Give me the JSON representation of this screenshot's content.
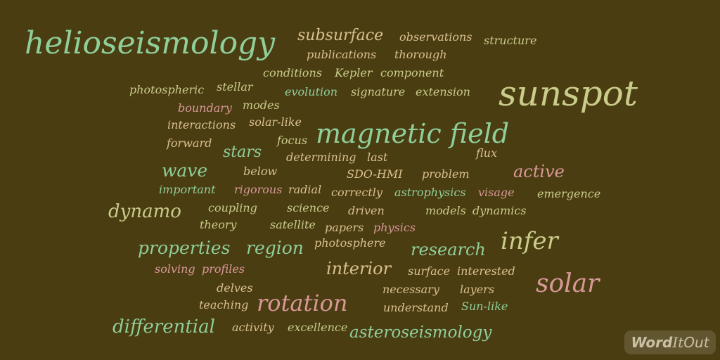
{
  "cloud": {
    "words": [
      "helioseismology",
      "subsurface",
      "observations",
      "structure",
      "publications",
      "thorough",
      "conditions",
      "Kepler",
      "component",
      "photospheric",
      "stellar",
      "evolution",
      "signature",
      "extension",
      "sunspot",
      "boundary",
      "modes",
      "interactions",
      "solar-like",
      "magnetic field",
      "forward",
      "focus",
      "stars",
      "determining",
      "last",
      "flux",
      "wave",
      "below",
      "SDO-HMI",
      "problem",
      "active",
      "important",
      "rigorous",
      "radial",
      "correctly",
      "astrophysics",
      "visage",
      "emergence",
      "dynamo",
      "coupling",
      "science",
      "driven",
      "models",
      "dynamics",
      "theory",
      "satellite",
      "papers",
      "physics",
      "properties",
      "region",
      "photosphere",
      "research",
      "infer",
      "solving",
      "profiles",
      "interior",
      "surface",
      "interested",
      "delves",
      "necessary",
      "layers",
      "solar",
      "teaching",
      "rotation",
      "understand",
      "Sun-like",
      "differential",
      "activity",
      "excellence",
      "asteroseismology"
    ]
  },
  "colors": {
    "background": "#4b3d12",
    "green": "#8fcf9a",
    "peach": "#d9c08f",
    "olive": "#c9cc8a",
    "pink": "#d89898"
  },
  "logo": {
    "word": "Word",
    "it": "It",
    "out": "Out"
  }
}
